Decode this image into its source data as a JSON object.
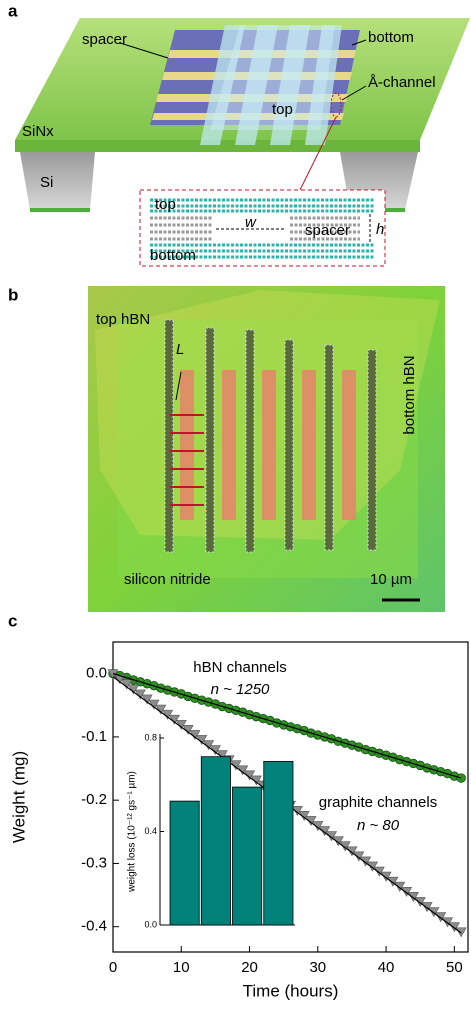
{
  "panel_labels": [
    "a",
    "b",
    "c"
  ],
  "schematic": {
    "labels": {
      "spacer": "spacer",
      "bottom": "bottom",
      "channel": "Å-channel",
      "top": "top",
      "substrate": "SiNx",
      "support": "Si"
    },
    "cross_section": {
      "top": "top",
      "width": "w",
      "spacer": "spacer",
      "height": "h",
      "bottom": "bottom"
    }
  },
  "micrograph": {
    "top_layer": "top hBN",
    "length": "L",
    "bottom_layer": "bottom hBN",
    "substrate": "silicon nitride",
    "scale_bar": "10 µm"
  },
  "chart_data": [
    {
      "type": "scatter",
      "x_label": "Time (hours)",
      "y_label": "Weight (mg)",
      "x": [
        0,
        1,
        2,
        3,
        4,
        5,
        6,
        7,
        8,
        9,
        10,
        11,
        12,
        13,
        14,
        15,
        16,
        17,
        18,
        19,
        20,
        21,
        22,
        23,
        24,
        25,
        26,
        27,
        28,
        29,
        30,
        31,
        32,
        33,
        34,
        35,
        36,
        37,
        38,
        39,
        40,
        41,
        42,
        43,
        44,
        45,
        46,
        47,
        48,
        49,
        50,
        51
      ],
      "series": [
        {
          "name": "hBN channels",
          "color": "#2f8f1f",
          "marker": "circle",
          "values": [
            0,
            -0.003,
            -0.006,
            -0.01,
            -0.013,
            -0.016,
            -0.019,
            -0.023,
            -0.026,
            -0.029,
            -0.032,
            -0.036,
            -0.039,
            -0.042,
            -0.045,
            -0.048,
            -0.052,
            -0.055,
            -0.058,
            -0.061,
            -0.065,
            -0.068,
            -0.071,
            -0.074,
            -0.078,
            -0.081,
            -0.084,
            -0.087,
            -0.09,
            -0.094,
            -0.097,
            -0.1,
            -0.103,
            -0.107,
            -0.11,
            -0.113,
            -0.116,
            -0.12,
            -0.123,
            -0.126,
            -0.129,
            -0.132,
            -0.136,
            -0.139,
            -0.142,
            -0.145,
            -0.149,
            -0.152,
            -0.155,
            -0.158,
            -0.162,
            -0.165
          ]
        },
        {
          "name": "graphite channels",
          "color": "#8c8c8c",
          "marker": "triangle",
          "values": [
            0,
            -0.008,
            -0.016,
            -0.024,
            -0.032,
            -0.04,
            -0.048,
            -0.056,
            -0.064,
            -0.072,
            -0.08,
            -0.088,
            -0.096,
            -0.104,
            -0.112,
            -0.12,
            -0.128,
            -0.136,
            -0.144,
            -0.152,
            -0.16,
            -0.168,
            -0.176,
            -0.184,
            -0.192,
            -0.2,
            -0.208,
            -0.216,
            -0.224,
            -0.232,
            -0.24,
            -0.248,
            -0.256,
            -0.264,
            -0.272,
            -0.28,
            -0.288,
            -0.296,
            -0.304,
            -0.312,
            -0.32,
            -0.328,
            -0.336,
            -0.344,
            -0.352,
            -0.36,
            -0.368,
            -0.376,
            -0.384,
            -0.392,
            -0.4,
            -0.408
          ]
        }
      ],
      "annotations": [
        "n ~ 1250",
        "n ~ 80"
      ],
      "fits": [
        {
          "x": [
            0,
            51
          ],
          "values": [
            0,
            -0.165
          ],
          "color": "#000000"
        },
        {
          "x": [
            0,
            51
          ],
          "values": [
            -0.005,
            -0.41
          ],
          "color": "#000000"
        }
      ],
      "xlim": [
        0,
        52
      ],
      "ylim": [
        -0.44,
        0.05
      ],
      "xticks": [
        0,
        10,
        20,
        30,
        40,
        50
      ],
      "yticks": [
        {
          "value": 0,
          "label": "0.0"
        },
        -0.1,
        -0.2,
        -0.3,
        -0.4
      ]
    },
    {
      "type": "bar",
      "y_label": "weight loss (10⁻¹² gs⁻¹ µm)",
      "categories": [
        null,
        null,
        null,
        null
      ],
      "values": [
        0.53,
        0.72,
        0.59,
        0.7
      ],
      "color": "#00817a",
      "ylim": [
        0,
        0.8
      ],
      "yticks": [
        {
          "value": 0,
          "label": "0.0"
        },
        0.4,
        0.8
      ]
    }
  ]
}
